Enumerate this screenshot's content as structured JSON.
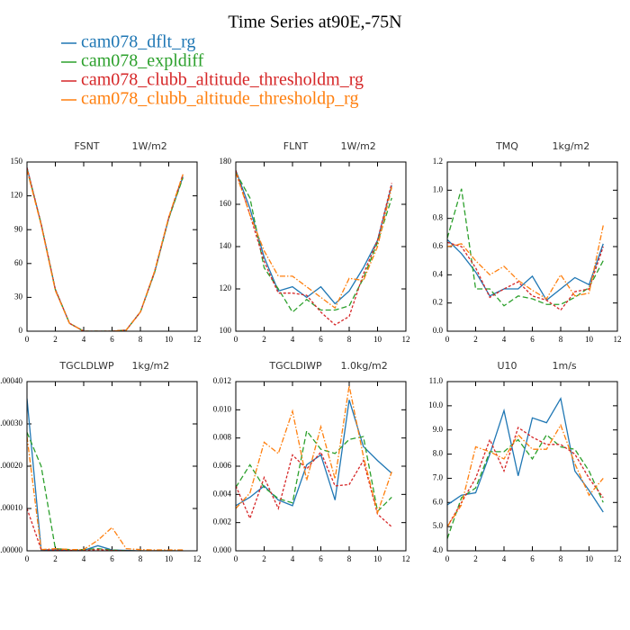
{
  "title": "Time Series at90E,-75N",
  "chart_data": [
    {
      "type": "line",
      "title": "FSNT",
      "subtitle": "1W/m2",
      "x": [
        0,
        1,
        2,
        3,
        4,
        5,
        6,
        7,
        8,
        9,
        10,
        11
      ],
      "xlim": [
        0,
        12
      ],
      "xticks": [
        0,
        2,
        4,
        6,
        8,
        10,
        12
      ],
      "ylim": [
        0,
        150
      ],
      "yticks": [
        0,
        30,
        60,
        90,
        120,
        150
      ],
      "series": [
        {
          "name": "cam078_dflt_rg",
          "color": "#1f77b4",
          "style": "solid",
          "values": [
            145,
            95,
            37,
            7,
            0,
            0,
            0,
            1,
            17,
            52,
            100,
            137
          ]
        },
        {
          "name": "cam078_expldiff",
          "color": "#2ca02c",
          "style": "dash",
          "values": [
            144,
            95,
            37,
            7,
            0,
            0,
            0,
            1,
            17,
            52,
            100,
            136
          ]
        },
        {
          "name": "cam078_clubb_altitude_thresholdm_rg",
          "color": "#d62728",
          "style": "dot",
          "values": [
            145,
            95,
            37,
            7,
            0,
            0,
            0,
            1,
            17,
            53,
            101,
            139
          ]
        },
        {
          "name": "cam078_clubb_altitude_thresholdp_rg",
          "color": "#ff7f0e",
          "style": "dashdot",
          "values": [
            143,
            94,
            36,
            7,
            0,
            0,
            0,
            1,
            17,
            53,
            101,
            139
          ]
        }
      ]
    },
    {
      "type": "line",
      "title": "FLNT",
      "subtitle": "1W/m2",
      "x": [
        0,
        1,
        2,
        3,
        4,
        5,
        6,
        7,
        8,
        9,
        10,
        11
      ],
      "xlim": [
        0,
        12
      ],
      "xticks": [
        0,
        2,
        4,
        6,
        8,
        10,
        12
      ],
      "ylim": [
        100,
        180
      ],
      "yticks": [
        100,
        120,
        140,
        160,
        180
      ],
      "series": [
        {
          "name": "cam078_dflt_rg",
          "color": "#1f77b4",
          "style": "solid",
          "values": [
            176,
            158,
            135,
            119,
            121,
            116,
            121,
            113,
            119,
            130,
            143,
            169
          ]
        },
        {
          "name": "cam078_expldiff",
          "color": "#2ca02c",
          "style": "dash",
          "values": [
            175,
            163,
            130,
            120,
            109,
            115,
            110,
            110,
            112,
            125,
            142,
            163
          ]
        },
        {
          "name": "cam078_clubb_altitude_thresholdm_rg",
          "color": "#d62728",
          "style": "dot",
          "values": [
            176,
            155,
            133,
            118,
            118,
            117,
            109,
            103,
            107,
            127,
            143,
            170
          ]
        },
        {
          "name": "cam078_clubb_altitude_thresholdp_rg",
          "color": "#ff7f0e",
          "style": "dashdot",
          "values": [
            175,
            155,
            138,
            126,
            126,
            121,
            116,
            111,
            125,
            124,
            140,
            168
          ]
        }
      ]
    },
    {
      "type": "line",
      "title": "TMQ",
      "subtitle": "1kg/m2",
      "x": [
        0,
        1,
        2,
        3,
        4,
        5,
        6,
        7,
        8,
        9,
        10,
        11
      ],
      "xlim": [
        0,
        12
      ],
      "xticks": [
        0,
        2,
        4,
        6,
        8,
        10,
        12
      ],
      "ylim": [
        0,
        1.2
      ],
      "yticks": [
        {
          "value": 0,
          "label": "0.0"
        },
        {
          "value": 0.2,
          "label": "0.2"
        },
        {
          "value": 0.4,
          "label": "0.4"
        },
        {
          "value": 0.6,
          "label": "0.6"
        },
        {
          "value": 0.8,
          "label": "0.8"
        },
        {
          "value": 1,
          "label": "1.0"
        },
        {
          "value": 1.2,
          "label": "1.2"
        }
      ],
      "series": [
        {
          "name": "cam078_dflt_rg",
          "color": "#1f77b4",
          "style": "solid",
          "values": [
            0.65,
            0.55,
            0.42,
            0.25,
            0.3,
            0.3,
            0.39,
            0.22,
            0.3,
            0.38,
            0.33,
            0.62
          ]
        },
        {
          "name": "cam078_expldiff",
          "color": "#2ca02c",
          "style": "dash",
          "values": [
            0.66,
            1.01,
            0.3,
            0.3,
            0.18,
            0.25,
            0.23,
            0.19,
            0.19,
            0.24,
            0.31,
            0.5
          ]
        },
        {
          "name": "cam078_clubb_altitude_thresholdm_rg",
          "color": "#d62728",
          "style": "dot",
          "values": [
            0.63,
            0.6,
            0.45,
            0.24,
            0.3,
            0.35,
            0.25,
            0.22,
            0.15,
            0.28,
            0.3,
            0.6
          ]
        },
        {
          "name": "cam078_clubb_altitude_thresholdp_rg",
          "color": "#ff7f0e",
          "style": "dashdot",
          "values": [
            0.6,
            0.62,
            0.5,
            0.4,
            0.46,
            0.36,
            0.29,
            0.23,
            0.4,
            0.25,
            0.27,
            0.75
          ]
        }
      ]
    },
    {
      "type": "line",
      "title": "TGCLDLWP",
      "subtitle": "1kg/m2",
      "x": [
        0,
        1,
        2,
        3,
        4,
        5,
        6,
        7,
        8,
        9,
        10,
        11
      ],
      "xlim": [
        0,
        12
      ],
      "xticks": [
        0,
        2,
        4,
        6,
        8,
        10,
        12
      ],
      "ylim": [
        0,
        0.0004
      ],
      "yticks": [
        {
          "value": 0,
          "label": "0.00000"
        },
        {
          "value": 0.0001,
          "label": "0.00010"
        },
        {
          "value": 0.0002,
          "label": "0.00020"
        },
        {
          "value": 0.0003,
          "label": "0.00030"
        },
        {
          "value": 0.0004,
          "label": "0.00040"
        }
      ],
      "series": [
        {
          "name": "cam078_dflt_rg",
          "color": "#1f77b4",
          "style": "solid",
          "values": [
            0.00036,
            2e-06,
            2e-06,
            1e-06,
            1e-06,
            1.2e-05,
            2e-06,
            1e-06,
            0,
            0,
            0,
            0
          ]
        },
        {
          "name": "cam078_expldiff",
          "color": "#2ca02c",
          "style": "dash",
          "values": [
            0.00028,
            0.0002,
            5e-06,
            3e-06,
            3e-06,
            5e-06,
            2e-06,
            0,
            0,
            0,
            0,
            0
          ]
        },
        {
          "name": "cam078_clubb_altitude_thresholdm_rg",
          "color": "#d62728",
          "style": "dot",
          "values": [
            0.0001,
            3e-06,
            2e-06,
            1e-06,
            1e-06,
            3e-06,
            1e-06,
            0,
            0,
            0,
            0,
            0
          ]
        },
        {
          "name": "cam078_clubb_altitude_thresholdp_rg",
          "color": "#ff7f0e",
          "style": "dashdot",
          "values": [
            0.00027,
            3e-06,
            5e-06,
            3e-06,
            3e-06,
            2.5e-05,
            5.5e-05,
            5e-06,
            3e-06,
            2e-06,
            2e-06,
            2e-06
          ]
        }
      ]
    },
    {
      "type": "line",
      "title": "TGCLDIWP",
      "subtitle": "1.0kg/m2",
      "x": [
        0,
        1,
        2,
        3,
        4,
        5,
        6,
        7,
        8,
        9,
        10,
        11
      ],
      "xlim": [
        0,
        12
      ],
      "xticks": [
        0,
        2,
        4,
        6,
        8,
        10,
        12
      ],
      "ylim": [
        0,
        0.012
      ],
      "yticks": [
        {
          "value": 0,
          "label": "0.000"
        },
        {
          "value": 0.002,
          "label": "0.002"
        },
        {
          "value": 0.004,
          "label": "0.004"
        },
        {
          "value": 0.006,
          "label": "0.006"
        },
        {
          "value": 0.008,
          "label": "0.008"
        },
        {
          "value": 0.01,
          "label": "0.010"
        },
        {
          "value": 0.012,
          "label": "0.012"
        }
      ],
      "series": [
        {
          "name": "cam078_dflt_rg",
          "color": "#1f77b4",
          "style": "solid",
          "values": [
            0.0032,
            0.0038,
            0.0046,
            0.0036,
            0.0032,
            0.0061,
            0.0068,
            0.0036,
            0.0107,
            0.0074,
            0.0064,
            0.0055
          ]
        },
        {
          "name": "cam078_expldiff",
          "color": "#2ca02c",
          "style": "dash",
          "values": [
            0.0045,
            0.0061,
            0.0045,
            0.0037,
            0.0034,
            0.0085,
            0.0072,
            0.0069,
            0.0079,
            0.0081,
            0.0028,
            0.0038
          ]
        },
        {
          "name": "cam078_clubb_altitude_thresholdm_rg",
          "color": "#d62728",
          "style": "dot",
          "values": [
            0.0046,
            0.0023,
            0.0052,
            0.003,
            0.0068,
            0.0058,
            0.007,
            0.0046,
            0.0047,
            0.0064,
            0.0026,
            0.0017
          ]
        },
        {
          "name": "cam078_clubb_altitude_thresholdp_rg",
          "color": "#ff7f0e",
          "style": "dashdot",
          "values": [
            0.003,
            0.0041,
            0.0077,
            0.0069,
            0.0099,
            0.005,
            0.0088,
            0.0051,
            0.0117,
            0.0067,
            0.0027,
            0.0056
          ]
        }
      ]
    },
    {
      "type": "line",
      "title": "U10",
      "subtitle": "1m/s",
      "x": [
        0,
        1,
        2,
        3,
        4,
        5,
        6,
        7,
        8,
        9,
        10,
        11
      ],
      "xlim": [
        0,
        12
      ],
      "xticks": [
        0,
        2,
        4,
        6,
        8,
        10,
        12
      ],
      "ylim": [
        4,
        11
      ],
      "yticks": [
        {
          "value": 4,
          "label": "4.0"
        },
        {
          "value": 5,
          "label": "5.0"
        },
        {
          "value": 6,
          "label": "6.0"
        },
        {
          "value": 7,
          "label": "7.0"
        },
        {
          "value": 8,
          "label": "8.0"
        },
        {
          "value": 9,
          "label": "9.0"
        },
        {
          "value": 10,
          "label": "10.0"
        },
        {
          "value": 11,
          "label": "11.0"
        }
      ],
      "series": [
        {
          "name": "cam078_dflt_rg",
          "color": "#1f77b4",
          "style": "solid",
          "values": [
            5.9,
            6.3,
            6.4,
            8.0,
            9.8,
            7.1,
            9.5,
            9.3,
            10.3,
            7.3,
            6.5,
            5.6
          ]
        },
        {
          "name": "cam078_expldiff",
          "color": "#2ca02c",
          "style": "dash",
          "values": [
            4.5,
            6.2,
            6.6,
            8.1,
            8.1,
            8.6,
            7.8,
            8.8,
            8.3,
            8.2,
            7.3,
            6.0
          ]
        },
        {
          "name": "cam078_clubb_altitude_thresholdm_rg",
          "color": "#d62728",
          "style": "dot",
          "values": [
            5.0,
            6.0,
            7.0,
            8.6,
            7.3,
            9.1,
            8.7,
            8.4,
            8.4,
            8.0,
            7.0,
            6.2
          ]
        },
        {
          "name": "cam078_clubb_altitude_thresholdp_rg",
          "color": "#ff7f0e",
          "style": "dashdot",
          "values": [
            5.0,
            5.9,
            8.3,
            8.1,
            7.8,
            8.8,
            8.2,
            8.2,
            9.2,
            7.6,
            6.3,
            7.0
          ]
        }
      ]
    }
  ]
}
